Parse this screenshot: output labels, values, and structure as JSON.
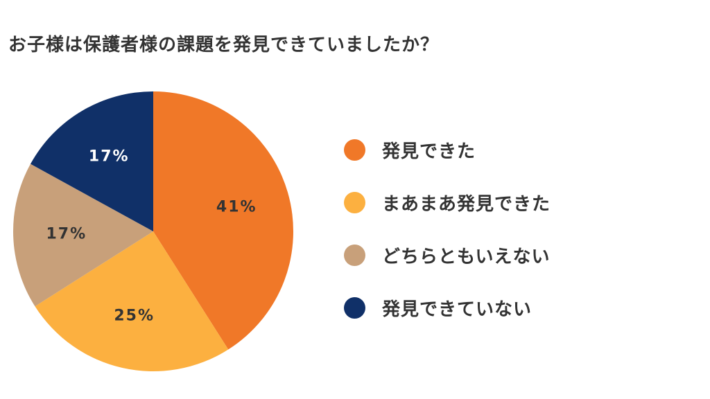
{
  "chart_data": {
    "type": "pie",
    "title": "お子様は保護者様の課題を発見できていましたか？",
    "categories": [
      "発見できた",
      "まあまあ発見できた",
      "どちらともいえない",
      "発見できていない"
    ],
    "values": [
      41,
      25,
      17,
      17
    ],
    "value_labels": [
      "41%",
      "25%",
      "17%",
      "17%"
    ],
    "colors": [
      "#F07828",
      "#FCB040",
      "#C8A07A",
      "#103068"
    ],
    "label_colors": [
      "#333333",
      "#333333",
      "#333333",
      "#FFFFFF"
    ],
    "legend_position": "right",
    "start": "top",
    "direction": "clockwise"
  }
}
